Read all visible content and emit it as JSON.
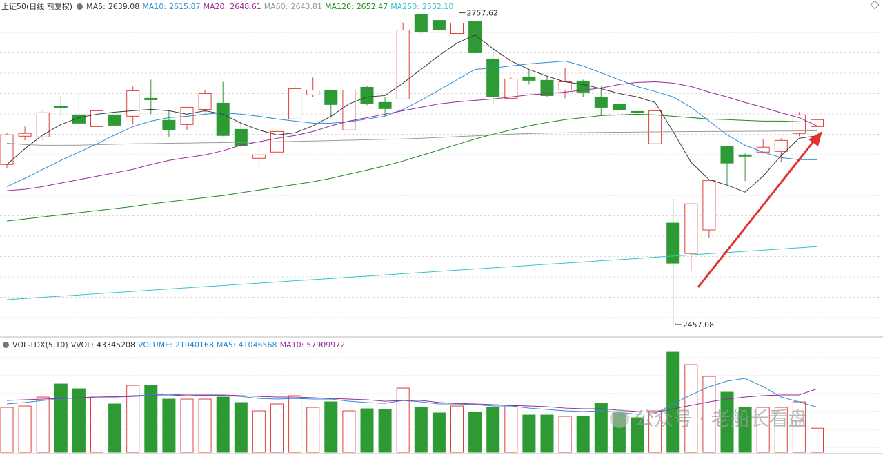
{
  "chart_data": [
    {
      "type": "candlestick",
      "title": "上证50(日线 前复权)",
      "ylim": [
        2447,
        2770
      ],
      "up_color": "#e0403c",
      "down_color": "#2e9a34",
      "open": [
        2611.3,
        2638.6,
        2637.9,
        2667.2,
        2659.2,
        2647.9,
        2659.2,
        2657.9,
        2675.2,
        2653.9,
        2649.9,
        2664.5,
        2670.5,
        2645.2,
        2617.3,
        2623.3,
        2655.2,
        2678.5,
        2683.1,
        2644.6,
        2685.8,
        2671.2,
        2674.5,
        2756.3,
        2750.3,
        2737.7,
        2749.0,
        2713.1,
        2675.2,
        2695.8,
        2692.5,
        2683.1,
        2691.8,
        2675.8,
        2669.2,
        2662.5,
        2631.3,
        2554.8,
        2525.5,
        2548.2,
        2628.6,
        2620.6,
        2623.3,
        2624.0,
        2641.3,
        2647.9
      ],
      "high": [
        2641.9,
        2647.9,
        2663.2,
        2676.5,
        2679.8,
        2671.2,
        2659.2,
        2686.5,
        2693.1,
        2663.2,
        2666.5,
        2683.1,
        2691.1,
        2653.2,
        2629.3,
        2649.9,
        2689.8,
        2695.1,
        2683.1,
        2683.1,
        2687.1,
        2676.5,
        2748.3,
        2756.3,
        2750.3,
        2757.62,
        2749.0,
        2723.0,
        2695.1,
        2703.1,
        2695.8,
        2704.4,
        2693.1,
        2686.5,
        2673.8,
        2673.2,
        2669.8,
        2578.7,
        2573.4,
        2596.0,
        2628.6,
        2621.9,
        2635.9,
        2636.6,
        2661.9,
        2656.5
      ],
      "low": [
        2607.3,
        2634.6,
        2634.6,
        2657.9,
        2645.2,
        2643.2,
        2647.9,
        2649.9,
        2659.9,
        2637.9,
        2644.6,
        2661.9,
        2638.6,
        2628.0,
        2610.0,
        2620.0,
        2655.2,
        2676.5,
        2656.5,
        2644.6,
        2668.5,
        2657.9,
        2674.5,
        2736.3,
        2738.3,
        2736.3,
        2716.4,
        2669.8,
        2675.2,
        2688.5,
        2676.5,
        2675.2,
        2676.5,
        2658.5,
        2661.9,
        2653.2,
        2631.3,
        2457.08,
        2508.9,
        2540.8,
        2591.4,
        2595.4,
        2621.9,
        2613.3,
        2638.6,
        2645.2
      ],
      "close": [
        2639.9,
        2641.3,
        2661.2,
        2665.9,
        2651.2,
        2663.2,
        2649.2,
        2682.5,
        2673.8,
        2644.6,
        2666.5,
        2679.8,
        2639.3,
        2629.3,
        2620.6,
        2643.2,
        2684.5,
        2683.1,
        2669.2,
        2683.1,
        2669.8,
        2665.2,
        2741.0,
        2739.0,
        2741.0,
        2747.7,
        2719.1,
        2676.5,
        2693.8,
        2692.5,
        2677.8,
        2691.1,
        2681.2,
        2666.5,
        2663.9,
        2661.2,
        2663.2,
        2516.2,
        2573.4,
        2596.0,
        2612.7,
        2619.3,
        2628.0,
        2634.6,
        2659.2,
        2654.6
      ],
      "series": [
        {
          "name": "MA5:",
          "color": "#3a3a3a",
          "values": [
            2611.3,
            2626.6,
            2639.9,
            2649.9,
            2656.5,
            2659.9,
            2661.9,
            2663.2,
            2664.5,
            2663.2,
            2659.9,
            2663.2,
            2659.9,
            2651.2,
            2644.6,
            2639.9,
            2641.9,
            2648.6,
            2657.9,
            2669.8,
            2676.5,
            2677.8,
            2689.8,
            2703.1,
            2716.4,
            2728.4,
            2736.3,
            2723.0,
            2711.1,
            2703.1,
            2696.5,
            2691.1,
            2688.5,
            2684.5,
            2679.8,
            2676.5,
            2671.2,
            2643.2,
            2613.3,
            2596.7,
            2591.4,
            2584.7,
            2600.0,
            2620.0,
            2636.6,
            2639.08
          ]
        },
        {
          "name": "MA10:",
          "color": "#2b8fd6",
          "values": [
            2590.0,
            2598.0,
            2606.7,
            2615.3,
            2623.3,
            2631.3,
            2639.9,
            2647.9,
            2653.2,
            2656.5,
            2657.9,
            2659.9,
            2661.2,
            2659.9,
            2657.9,
            2655.2,
            2653.2,
            2651.2,
            2651.2,
            2652.6,
            2655.2,
            2657.9,
            2664.5,
            2673.2,
            2683.1,
            2693.1,
            2703.1,
            2704.4,
            2706.4,
            2708.4,
            2709.7,
            2711.1,
            2706.4,
            2699.8,
            2693.1,
            2686.5,
            2681.8,
            2676.5,
            2666.5,
            2653.2,
            2639.9,
            2629.9,
            2623.3,
            2618.0,
            2616.0,
            2615.87
          ]
        },
        {
          "name": "MA20:",
          "color": "#9a2a9a",
          "values": [
            2586.1,
            2587.4,
            2590.0,
            2593.4,
            2596.7,
            2600.0,
            2603.3,
            2606.7,
            2611.3,
            2615.3,
            2618.0,
            2620.6,
            2624.6,
            2629.9,
            2633.3,
            2636.6,
            2639.3,
            2643.2,
            2648.6,
            2653.2,
            2656.5,
            2659.9,
            2663.2,
            2666.5,
            2669.8,
            2671.8,
            2673.2,
            2674.5,
            2676.5,
            2678.5,
            2679.8,
            2681.2,
            2683.1,
            2685.1,
            2688.5,
            2690.5,
            2691.1,
            2689.8,
            2686.5,
            2681.2,
            2676.5,
            2671.2,
            2666.5,
            2661.2,
            2656.5,
            2648.61
          ]
        },
        {
          "name": "MA60:",
          "color": "#9a9a9a",
          "values": [
            2631.9,
            2630.6,
            2629.9,
            2629.9,
            2630.0,
            2630.4,
            2630.9,
            2631.3,
            2631.5,
            2631.8,
            2632.0,
            2632.3,
            2632.5,
            2632.8,
            2633.0,
            2633.3,
            2633.6,
            2634.0,
            2634.4,
            2634.8,
            2635.2,
            2635.6,
            2636.0,
            2636.6,
            2637.4,
            2638.2,
            2639.0,
            2639.8,
            2640.6,
            2641.2,
            2641.6,
            2641.9,
            2642.1,
            2642.3,
            2642.5,
            2642.6,
            2642.8,
            2643.0,
            2643.1,
            2643.2,
            2643.3,
            2643.4,
            2643.5,
            2643.6,
            2643.7,
            2643.81
          ]
        },
        {
          "name": "MA120:",
          "color": "#1f8a1f",
          "values": [
            2556.8,
            2558.8,
            2560.8,
            2562.8,
            2564.8,
            2566.8,
            2568.8,
            2570.8,
            2573.4,
            2575.4,
            2577.4,
            2579.4,
            2581.4,
            2584.1,
            2586.7,
            2589.4,
            2592.0,
            2594.7,
            2598.0,
            2602.0,
            2606.0,
            2610.0,
            2614.7,
            2620.0,
            2625.3,
            2630.6,
            2635.9,
            2640.6,
            2644.6,
            2648.6,
            2651.9,
            2654.6,
            2656.5,
            2658.5,
            2659.2,
            2659.9,
            2659.2,
            2657.9,
            2656.5,
            2655.2,
            2654.6,
            2653.9,
            2653.2,
            2653.2,
            2652.6,
            2652.47
          ]
        },
        {
          "name": "MA250:",
          "color": "#35c4cc",
          "last_label": "2532.10",
          "values": [
            2481.0,
            2482.1,
            2483.3,
            2484.4,
            2485.5,
            2486.7,
            2487.8,
            2488.9,
            2490.1,
            2491.2,
            2492.4,
            2493.5,
            2494.6,
            2495.8,
            2496.9,
            2498.0,
            2499.2,
            2500.3,
            2501.4,
            2502.6,
            2503.7,
            2504.8,
            2506.0,
            2507.1,
            2508.3,
            2509.4,
            2510.5,
            2511.7,
            2512.8,
            2513.9,
            2515.1,
            2516.2,
            2517.3,
            2518.5,
            2519.6,
            2520.7,
            2521.9,
            2523.0,
            2524.1,
            2525.3,
            2526.4,
            2527.6,
            2528.7,
            2529.8,
            2531.0,
            2532.1
          ]
        }
      ]
    },
    {
      "type": "bar",
      "title": "VOL-TDX(5,10)",
      "ylim": [
        0,
        104000000
      ],
      "name": "VOLUME:",
      "color": "#1e82d2",
      "vvol": {
        "name": "VVOL:",
        "value": 43345208
      },
      "values": [
        40950000,
        42210000,
        50400000,
        62370000,
        57960000,
        50400000,
        44100000,
        61110000,
        61110000,
        48510000,
        48510000,
        48510000,
        50400000,
        45360000,
        37800000,
        44100000,
        51660000,
        40950000,
        45990000,
        37800000,
        39690000,
        39060000,
        58590000,
        40950000,
        35910000,
        42210000,
        36540000,
        40950000,
        42210000,
        34020000,
        34020000,
        32760000,
        32760000,
        44730000,
        35910000,
        31500000,
        37800000,
        91350000,
        80010000,
        69300000,
        54810000,
        40950000,
        40950000,
        40950000,
        45990000,
        21940168
      ],
      "series": [
        {
          "name": "MA5:",
          "color": "#2b8fd6",
          "values": [
            44100000,
            45400000,
            47300000,
            48500000,
            49800000,
            50400000,
            51000000,
            51700000,
            52300000,
            52900000,
            52300000,
            51700000,
            51700000,
            51000000,
            49100000,
            48500000,
            49100000,
            48500000,
            48500000,
            46600000,
            45400000,
            44700000,
            47300000,
            46000000,
            44100000,
            44100000,
            43500000,
            42200000,
            42200000,
            40300000,
            39100000,
            37800000,
            37200000,
            37800000,
            36500000,
            34700000,
            35300000,
            44100000,
            52300000,
            59900000,
            64900000,
            67400000,
            59900000,
            50400000,
            46000000,
            41046568
          ]
        },
        {
          "name": "MA10:",
          "color": "#9a2a9a",
          "values": [
            47300000,
            47900000,
            48500000,
            49100000,
            49800000,
            50400000,
            50400000,
            51000000,
            51700000,
            51700000,
            52300000,
            52300000,
            52300000,
            51700000,
            51000000,
            50400000,
            50400000,
            49800000,
            49100000,
            48500000,
            47900000,
            46600000,
            47300000,
            47300000,
            45400000,
            44700000,
            44100000,
            43500000,
            42800000,
            42200000,
            41600000,
            40300000,
            39700000,
            39700000,
            38400000,
            37200000,
            36500000,
            39700000,
            42800000,
            46000000,
            48500000,
            50400000,
            51700000,
            52300000,
            52300000,
            57909972
          ]
        }
      ]
    }
  ],
  "watermark": "公众号 · 老船长看盘"
}
